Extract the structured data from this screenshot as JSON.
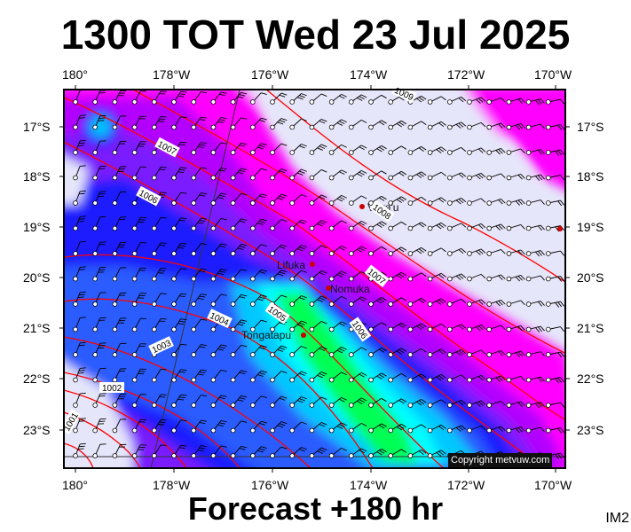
{
  "header": {
    "title": "1300 TOT Wed 23 Jul 2025"
  },
  "footer": {
    "forecast": "Forecast +180 hr",
    "code": "IM2"
  },
  "copyright": "Copyright metvuw.com",
  "axes": {
    "top": [
      "180°",
      "178°W",
      "176°W",
      "174°W",
      "172°W",
      "170°W"
    ],
    "bottom": [
      "180°",
      "178°W",
      "176°W",
      "174°W",
      "172°W",
      "170°W"
    ],
    "left": [
      "17°S",
      "18°S",
      "19°S",
      "20°S",
      "21°S",
      "22°S",
      "23°S"
    ],
    "right": [
      "17°S",
      "18°S",
      "19°S",
      "20°S",
      "21°S",
      "22°S",
      "23°S"
    ]
  },
  "places": [
    {
      "name": "Vava'u"
    },
    {
      "name": "Lifuka"
    },
    {
      "name": "Nomuka"
    },
    {
      "name": "Tongatapu"
    }
  ],
  "isobar_labels": [
    "1009",
    "1007",
    "1006",
    "1008",
    "1007",
    "1004",
    "1003",
    "1002",
    "1001",
    "1006",
    "1005",
    "1006"
  ],
  "colors": {
    "calm": "#e6e6fa",
    "magenta": "#ff00ff",
    "violet": "#b300ff",
    "purple": "#7a1fff",
    "blue": "#1a1aff",
    "midblue": "#2a5cff",
    "cyan": "#00c8ff",
    "aqua": "#00ffff",
    "green": "#00ff55",
    "isobar": "#ff0000"
  }
}
